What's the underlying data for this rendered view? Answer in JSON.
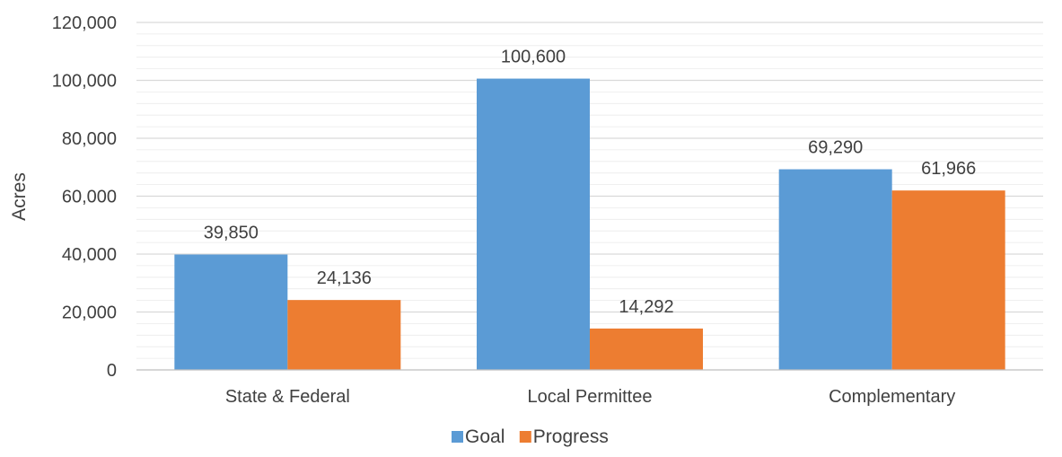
{
  "chart_data": {
    "type": "bar",
    "categories": [
      "State & Federal",
      "Local Permittee",
      "Complementary"
    ],
    "series": [
      {
        "name": "Goal",
        "values": [
          39850,
          100600,
          69290
        ],
        "labels": [
          "39,850",
          "100,600",
          "69,290"
        ],
        "color": "#5B9BD5"
      },
      {
        "name": "Progress",
        "values": [
          24136,
          14292,
          61966
        ],
        "labels": [
          "24,136",
          "14,292",
          "61,966"
        ],
        "color": "#ED7D31"
      }
    ],
    "ylabel": "Acres",
    "ylim": [
      0,
      120000
    ],
    "yticks": [
      0,
      20000,
      40000,
      60000,
      80000,
      100000,
      120000
    ],
    "ytick_labels": [
      "0",
      "20,000",
      "40,000",
      "60,000",
      "80,000",
      "100,000",
      "120,000"
    ],
    "grid": true,
    "minor_grid": true,
    "legend_position": "bottom"
  },
  "colors": {
    "grid": "#d9d9d9",
    "axis": "#bfbfbf",
    "text": "#404040"
  }
}
